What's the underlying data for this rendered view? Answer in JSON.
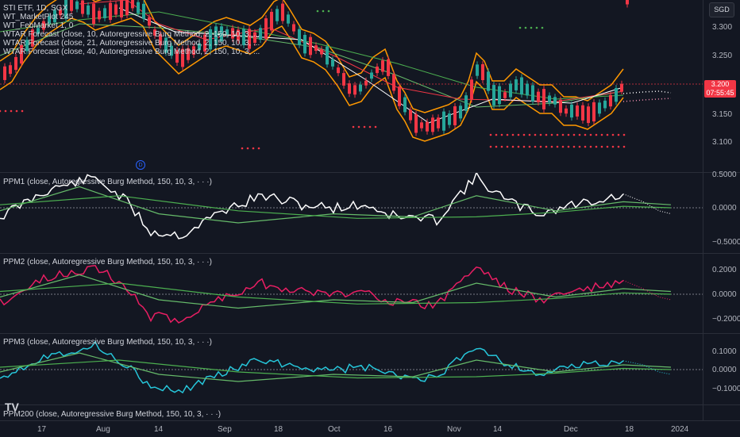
{
  "main_pane": {
    "legend": [
      "STI ETF, 1D, SGX",
      "WT_MarketPlot 245",
      "WT_FebMarket 1, 0",
      "WTAR Forecast (close, 10, Autoregressive Burg Method, 2, 150, 10, 3, ...",
      "WTAR Forecast (close, 21, Autoregressive Burg Method, 2, 150, 10, 3, ...",
      "WTAR Forecast (close, 40, Autoregressive Burg Method, 2, 150, 10, 3, ..."
    ],
    "currency_button": "SGD",
    "y_labels": [
      "3.300",
      "3.250",
      "3.150",
      "3.100"
    ],
    "price_tag": {
      "price": "3.200",
      "countdown": "07:55:45"
    },
    "event_marker": "D"
  },
  "ppm1": {
    "legend": "PPM1 (close, Autoregressive Burg Method, 150, 10, 3, · · ·)",
    "y_labels": [
      "0.5000",
      "0.0000",
      "−0.5000"
    ]
  },
  "ppm2": {
    "legend": "PPM2 (close, Autoregressive Burg Method, 150, 10, 3, · · ·)",
    "y_labels": [
      "0.2000",
      "0.0000",
      "−0.2000"
    ]
  },
  "ppm3": {
    "legend": "PPM3 (close, Autoregressive Burg Method, 150, 10, 3, · · ·)",
    "y_labels": [
      "0.1000",
      "0.0000",
      "−0.1000"
    ]
  },
  "ppm200": {
    "legend": "PPM200 (close, Autoregressive Burg Method, 150, 10, 3, · · ·)"
  },
  "x_axis": [
    "17",
    "Aug",
    "14",
    "Sep",
    "18",
    "Oct",
    "16",
    "Nov",
    "14",
    "Dec",
    "18",
    "2024"
  ],
  "colors": {
    "background": "#131722",
    "up": "#26a69a",
    "down": "#f23645",
    "band": "#ff9800",
    "ppm_white": "#ffffff",
    "ppm_pink": "#e91e63",
    "ppm_cyan": "#26c6da",
    "green_slow": "#4caf50",
    "green_fast": "#66bb6a"
  }
}
